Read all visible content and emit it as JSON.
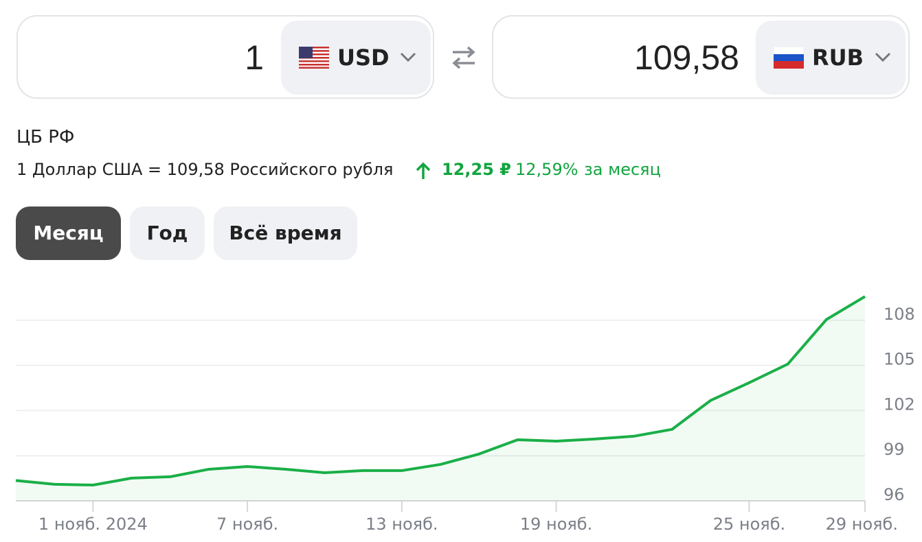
{
  "converter": {
    "from": {
      "amount": "1",
      "currency": "USD"
    },
    "to": {
      "amount": "109,58",
      "currency": "RUB"
    }
  },
  "source": "ЦБ РФ",
  "rate_text": "1 Доллар США = 109,58 Российского рубля",
  "change": {
    "absolute": "12,25 ₽",
    "percent": "12,59%",
    "period": "за месяц"
  },
  "tabs": [
    "Месяц",
    "Год",
    "Всё время"
  ],
  "chart_data": {
    "type": "line",
    "color": "#1aaf47",
    "grid": true,
    "categories": [
      null,
      null,
      "1 нояб. 2024",
      null,
      null,
      null,
      "7 нояб.",
      null,
      null,
      null,
      "13 нояб.",
      null,
      null,
      null,
      "19 нояб.",
      null,
      null,
      null,
      null,
      "25 нояб.",
      null,
      null,
      "29 нояб."
    ],
    "values": [
      97.35,
      97.1,
      97.05,
      97.51,
      97.6,
      98.1,
      98.28,
      98.1,
      97.87,
      98.01,
      98.01,
      98.42,
      99.11,
      100.06,
      99.97,
      100.11,
      100.29,
      100.75,
      102.67,
      103.85,
      105.09,
      108.05,
      109.58
    ],
    "ylim": [
      96,
      110
    ],
    "yticks": [
      96,
      99,
      102,
      105,
      108
    ]
  }
}
